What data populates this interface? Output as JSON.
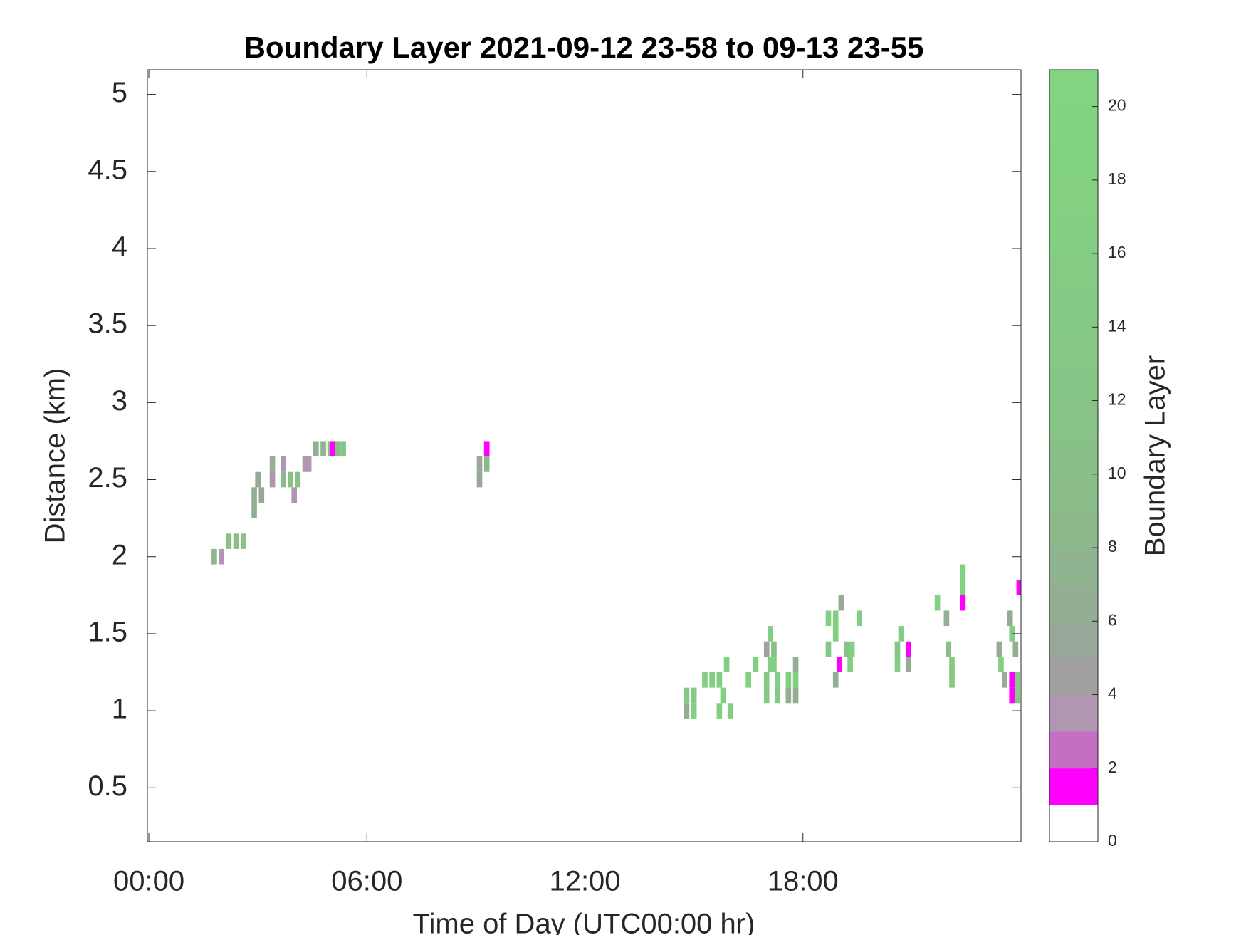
{
  "chart_data": {
    "type": "heatmap",
    "title": "Boundary Layer 2021-09-12 23-58 to 09-13 23-55",
    "x_label": "Time of Day (UTC00:00 hr)",
    "y_label": "Distance (km)",
    "colorbar_label": "Boundary Layer",
    "xlim": [
      -0.04,
      24
    ],
    "xticks": [
      {
        "value": 0,
        "label": "00:00"
      },
      {
        "value": 6,
        "label": "06:00"
      },
      {
        "value": 12,
        "label": "12:00"
      },
      {
        "value": 18,
        "label": "18:00"
      }
    ],
    "ylim": [
      0.15,
      5.16
    ],
    "yticks": [
      0.5,
      1,
      1.5,
      2,
      2.5,
      3,
      3.5,
      4,
      4.5,
      5
    ],
    "clim": [
      0,
      21
    ],
    "cticks": [
      0,
      2,
      4,
      6,
      8,
      10,
      12,
      14,
      16,
      18,
      20
    ],
    "colormap": [
      "#ffffff",
      "#ff00ff",
      "#c46ec4",
      "#b096b0",
      "#a0a0a0",
      "#98a898",
      "#94ae94",
      "#90b490",
      "#8cb98c",
      "#8abd8a",
      "#88c088",
      "#87c387",
      "#86c586",
      "#85c885",
      "#84ca84",
      "#84cc84",
      "#83ce83",
      "#83d083",
      "#82d182",
      "#82d282",
      "#82d482"
    ],
    "x": [
      1.8,
      2.0,
      2.2,
      2.4,
      2.6,
      2.9,
      2.9,
      3.0,
      3.1,
      3.4,
      3.4,
      3.7,
      3.9,
      4.1,
      3.7,
      4.0,
      4.3,
      4.4,
      4.6,
      4.8,
      5.0,
      5.07,
      5.2,
      5.35,
      9.1,
      9.3,
      9.1,
      9.3,
      14.8,
      15.0,
      14.8,
      15.0,
      15.3,
      15.5,
      15.7,
      15.7,
      15.9,
      15.8,
      16.0,
      16.5,
      16.7,
      17.0,
      17.1,
      17.1,
      17.0,
      17.2,
      17.2,
      17.3,
      17.0,
      17.3,
      17.6,
      17.8,
      17.6,
      17.8,
      17.8,
      18.7,
      18.7,
      18.9,
      19.05,
      18.9,
      19.0,
      18.9,
      19.2,
      19.3,
      19.35,
      19.55,
      20.6,
      20.6,
      20.7,
      20.9,
      20.9,
      21.7,
      21.95,
      22.0,
      22.1,
      22.1,
      22.4,
      22.4,
      22.4,
      23.4,
      23.45,
      23.55,
      23.7,
      23.75,
      23.75,
      23.75,
      23.85,
      23.9,
      23.9,
      23.95
    ],
    "y": [
      2.0,
      2.0,
      2.1,
      2.1,
      2.1,
      2.4,
      2.3,
      2.5,
      2.4,
      2.6,
      2.5,
      2.5,
      2.5,
      2.5,
      2.6,
      2.4,
      2.6,
      2.6,
      2.7,
      2.7,
      2.7,
      2.7,
      2.7,
      2.7,
      2.6,
      2.6,
      2.5,
      2.7,
      1.1,
      1.1,
      1.0,
      1.0,
      1.2,
      1.2,
      1.2,
      1.0,
      1.3,
      1.1,
      1.0,
      1.2,
      1.3,
      1.4,
      1.5,
      1.3,
      1.2,
      1.4,
      1.3,
      1.2,
      1.1,
      1.1,
      1.2,
      1.2,
      1.1,
      1.1,
      1.3,
      1.6,
      1.4,
      1.6,
      1.7,
      1.5,
      1.3,
      1.2,
      1.4,
      1.3,
      1.4,
      1.6,
      1.4,
      1.3,
      1.5,
      1.4,
      1.3,
      1.7,
      1.6,
      1.4,
      1.3,
      1.2,
      1.7,
      1.9,
      1.8,
      1.4,
      1.3,
      1.2,
      1.6,
      1.5,
      1.2,
      1.1,
      1.4,
      1.2,
      1.1,
      1.8
    ],
    "values": [
      8,
      3,
      10,
      10,
      12,
      6,
      6,
      5,
      5,
      6,
      3,
      8,
      10,
      10,
      3,
      3,
      3,
      3,
      6,
      7,
      10,
      1,
      10,
      12,
      5,
      8,
      5,
      1,
      14,
      14,
      6,
      16,
      16,
      16,
      16,
      16,
      16,
      16,
      16,
      18,
      18,
      4,
      16,
      16,
      14,
      10,
      16,
      16,
      14,
      14,
      16,
      16,
      6,
      6,
      6,
      18,
      14,
      16,
      6,
      16,
      1,
      6,
      10,
      16,
      16,
      16,
      12,
      16,
      16,
      1,
      6,
      18,
      6,
      10,
      14,
      14,
      1,
      18,
      18,
      6,
      16,
      6,
      6,
      16,
      1,
      1,
      6,
      14,
      14,
      1
    ]
  }
}
